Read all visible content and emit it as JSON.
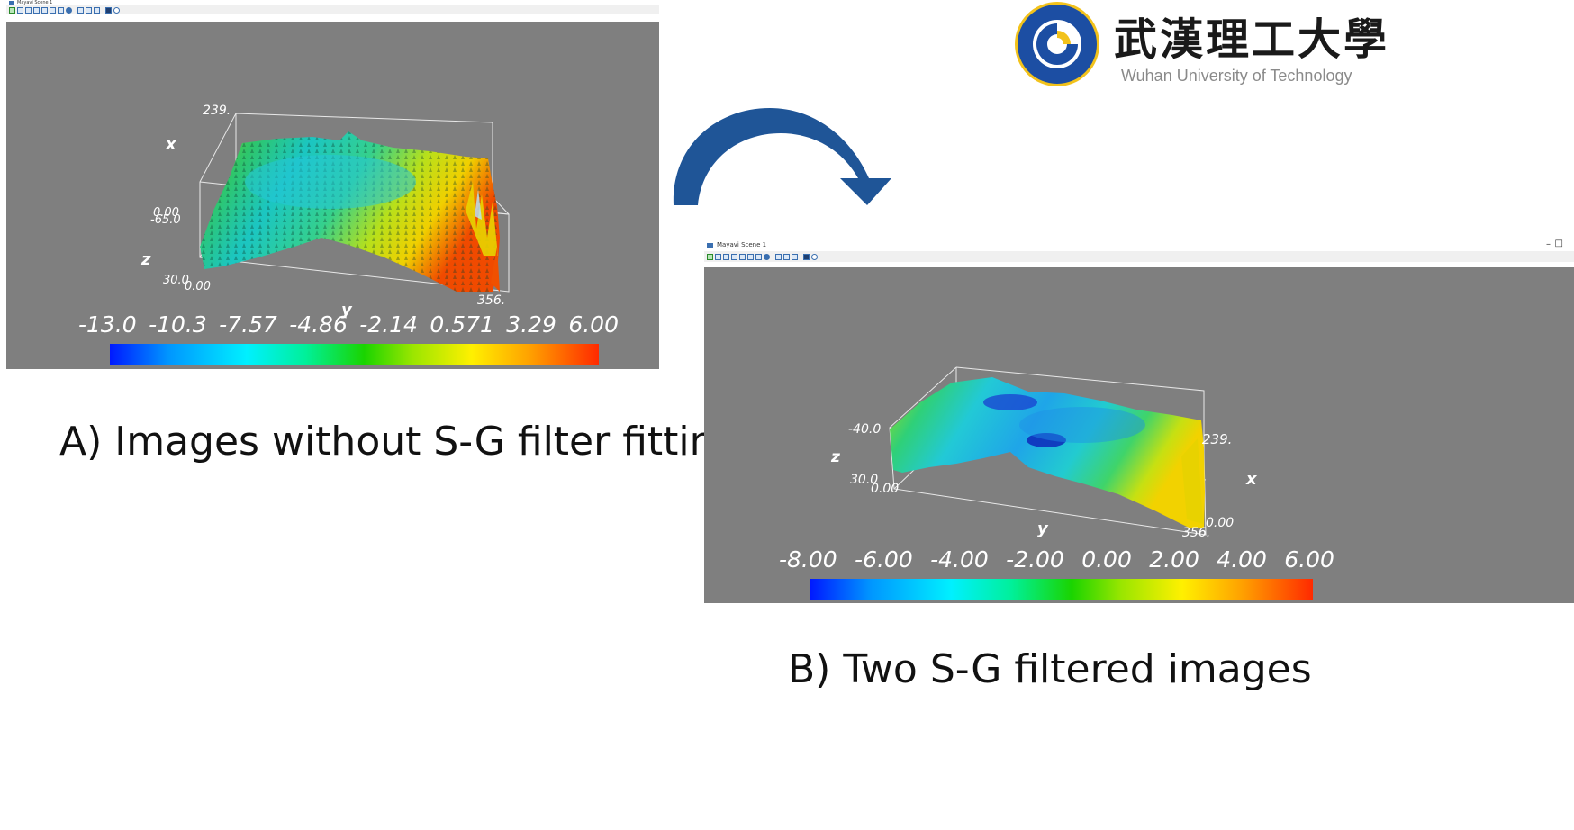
{
  "logo": {
    "chinese_name": "武漢理工大學",
    "english_name": "Wuhan University of Technology",
    "seal_text": "WUHAN UNIVERSITY OF TECHNOLOGY",
    "colors": {
      "blue": "#1c4ea3",
      "gold": "#f2c21b"
    }
  },
  "scene_a": {
    "window_title": "Mayavi Scene 1",
    "axis": {
      "x_label": "x",
      "y_label": "y",
      "z_label": "z"
    },
    "tick_labels": {
      "x_max": "239.",
      "z_max": "0.00",
      "z_min": "-65.0",
      "z_origin": "30.0",
      "x_origin": "0.00",
      "y_max": "356."
    },
    "colorbar_ticks": [
      "-13.0",
      "-10.3",
      "-7.57",
      "-4.86",
      "-2.14",
      "0.571",
      "3.29",
      "6.00"
    ],
    "colorbar_range": [
      -13.0,
      6.0
    ]
  },
  "scene_b": {
    "window_title": "Mayavi Scene 1",
    "axis": {
      "x_label": "x",
      "y_label": "y",
      "z_label": "z"
    },
    "tick_labels": {
      "z_top": "-40.0",
      "z_origin": "30.0",
      "x_origin": "0.00",
      "x_max": "239.",
      "y_origin": "0.00",
      "y_max": "356."
    },
    "colorbar_ticks": [
      "-8.00",
      "-6.00",
      "-4.00",
      "-2.00",
      "0.00",
      "2.00",
      "4.00",
      "6.00"
    ],
    "colorbar_range": [
      -8.0,
      6.0
    ]
  },
  "captions": {
    "a": "A) Images without S-G filter fitting",
    "b": "B) Two S-G filtered images"
  },
  "icons": [
    "window-icon",
    "arrow-icon",
    "view-icon",
    "save-icon",
    "minimize-icon",
    "maximize-icon"
  ],
  "colors": {
    "viewport_gray": "#7f7f7f",
    "arrow_blue": "#1f5597"
  }
}
